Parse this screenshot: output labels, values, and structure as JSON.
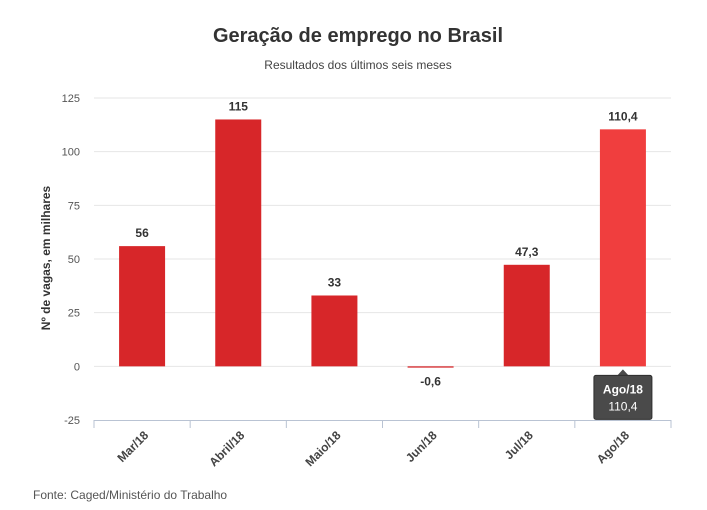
{
  "chart_data": {
    "type": "bar",
    "title": "Geração de emprego no Brasil",
    "subtitle": "Resultados dos últimos seis meses",
    "ylabel": "Nº de vagas, em milhares",
    "xlabel": "",
    "categories": [
      "Mar/18",
      "Abril/18",
      "Maio/18",
      "Jun/18",
      "Jul/18",
      "Ago/18"
    ],
    "values": [
      56,
      115,
      33,
      -0.6,
      47.3,
      110.4
    ],
    "data_labels": [
      "56",
      "115",
      "33",
      "-0,6",
      "47,3",
      "110,4"
    ],
    "ylim": [
      -25,
      125
    ],
    "yticks": [
      125,
      100,
      75,
      50,
      25,
      0,
      -25
    ],
    "grid": true,
    "legend": "none",
    "colors": {
      "bar": "#d72629",
      "bar_highlight": "#f03e3e",
      "tooltip_bg": "#4a4a4a"
    },
    "highlighted_index": 5,
    "tooltip": {
      "title": "Ago/18",
      "value": "110,4"
    },
    "source": "Fonte: Caged/Ministério do Trabalho"
  }
}
